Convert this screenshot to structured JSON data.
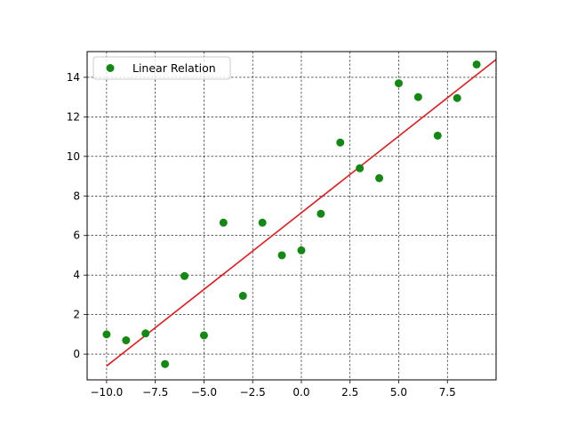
{
  "chart_data": {
    "type": "scatter",
    "title": "",
    "xlabel": "",
    "ylabel": "",
    "xlim": [
      -11,
      10
    ],
    "ylim": [
      -1.3,
      15.3
    ],
    "grid": true,
    "legend_position": "top-left",
    "x_ticks": [
      {
        "value": -10,
        "label": "−10.0"
      },
      {
        "value": -7.5,
        "label": "−7.5"
      },
      {
        "value": -5,
        "label": "−5.0"
      },
      {
        "value": -2.5,
        "label": "−2.5"
      },
      {
        "value": 0,
        "label": "0.0"
      },
      {
        "value": 2.5,
        "label": "2.5"
      },
      {
        "value": 5,
        "label": "5.0"
      },
      {
        "value": 7.5,
        "label": "7.5"
      }
    ],
    "y_ticks": [
      {
        "value": 0,
        "label": "0"
      },
      {
        "value": 2,
        "label": "2"
      },
      {
        "value": 4,
        "label": "4"
      },
      {
        "value": 6,
        "label": "6"
      },
      {
        "value": 8,
        "label": "8"
      },
      {
        "value": 10,
        "label": "10"
      },
      {
        "value": 12,
        "label": "12"
      },
      {
        "value": 14,
        "label": "14"
      }
    ],
    "series": [
      {
        "name": "Linear Relation",
        "kind": "scatter",
        "color": "#138913",
        "x": [
          -10,
          -9,
          -8,
          -7,
          -6,
          -5,
          -4,
          -3,
          -2,
          -1,
          0,
          1,
          2,
          3,
          4,
          5,
          6,
          7,
          8,
          9
        ],
        "y": [
          1.0,
          0.7,
          1.05,
          -0.5,
          3.95,
          0.95,
          6.65,
          2.95,
          6.65,
          5.0,
          5.25,
          7.1,
          10.7,
          9.4,
          8.9,
          13.7,
          13.0,
          11.05,
          12.95,
          14.65
        ]
      }
    ],
    "fit_line": {
      "color": "#e41a1c",
      "x": [
        -10,
        10
      ],
      "y": [
        -0.6,
        14.9
      ]
    }
  }
}
